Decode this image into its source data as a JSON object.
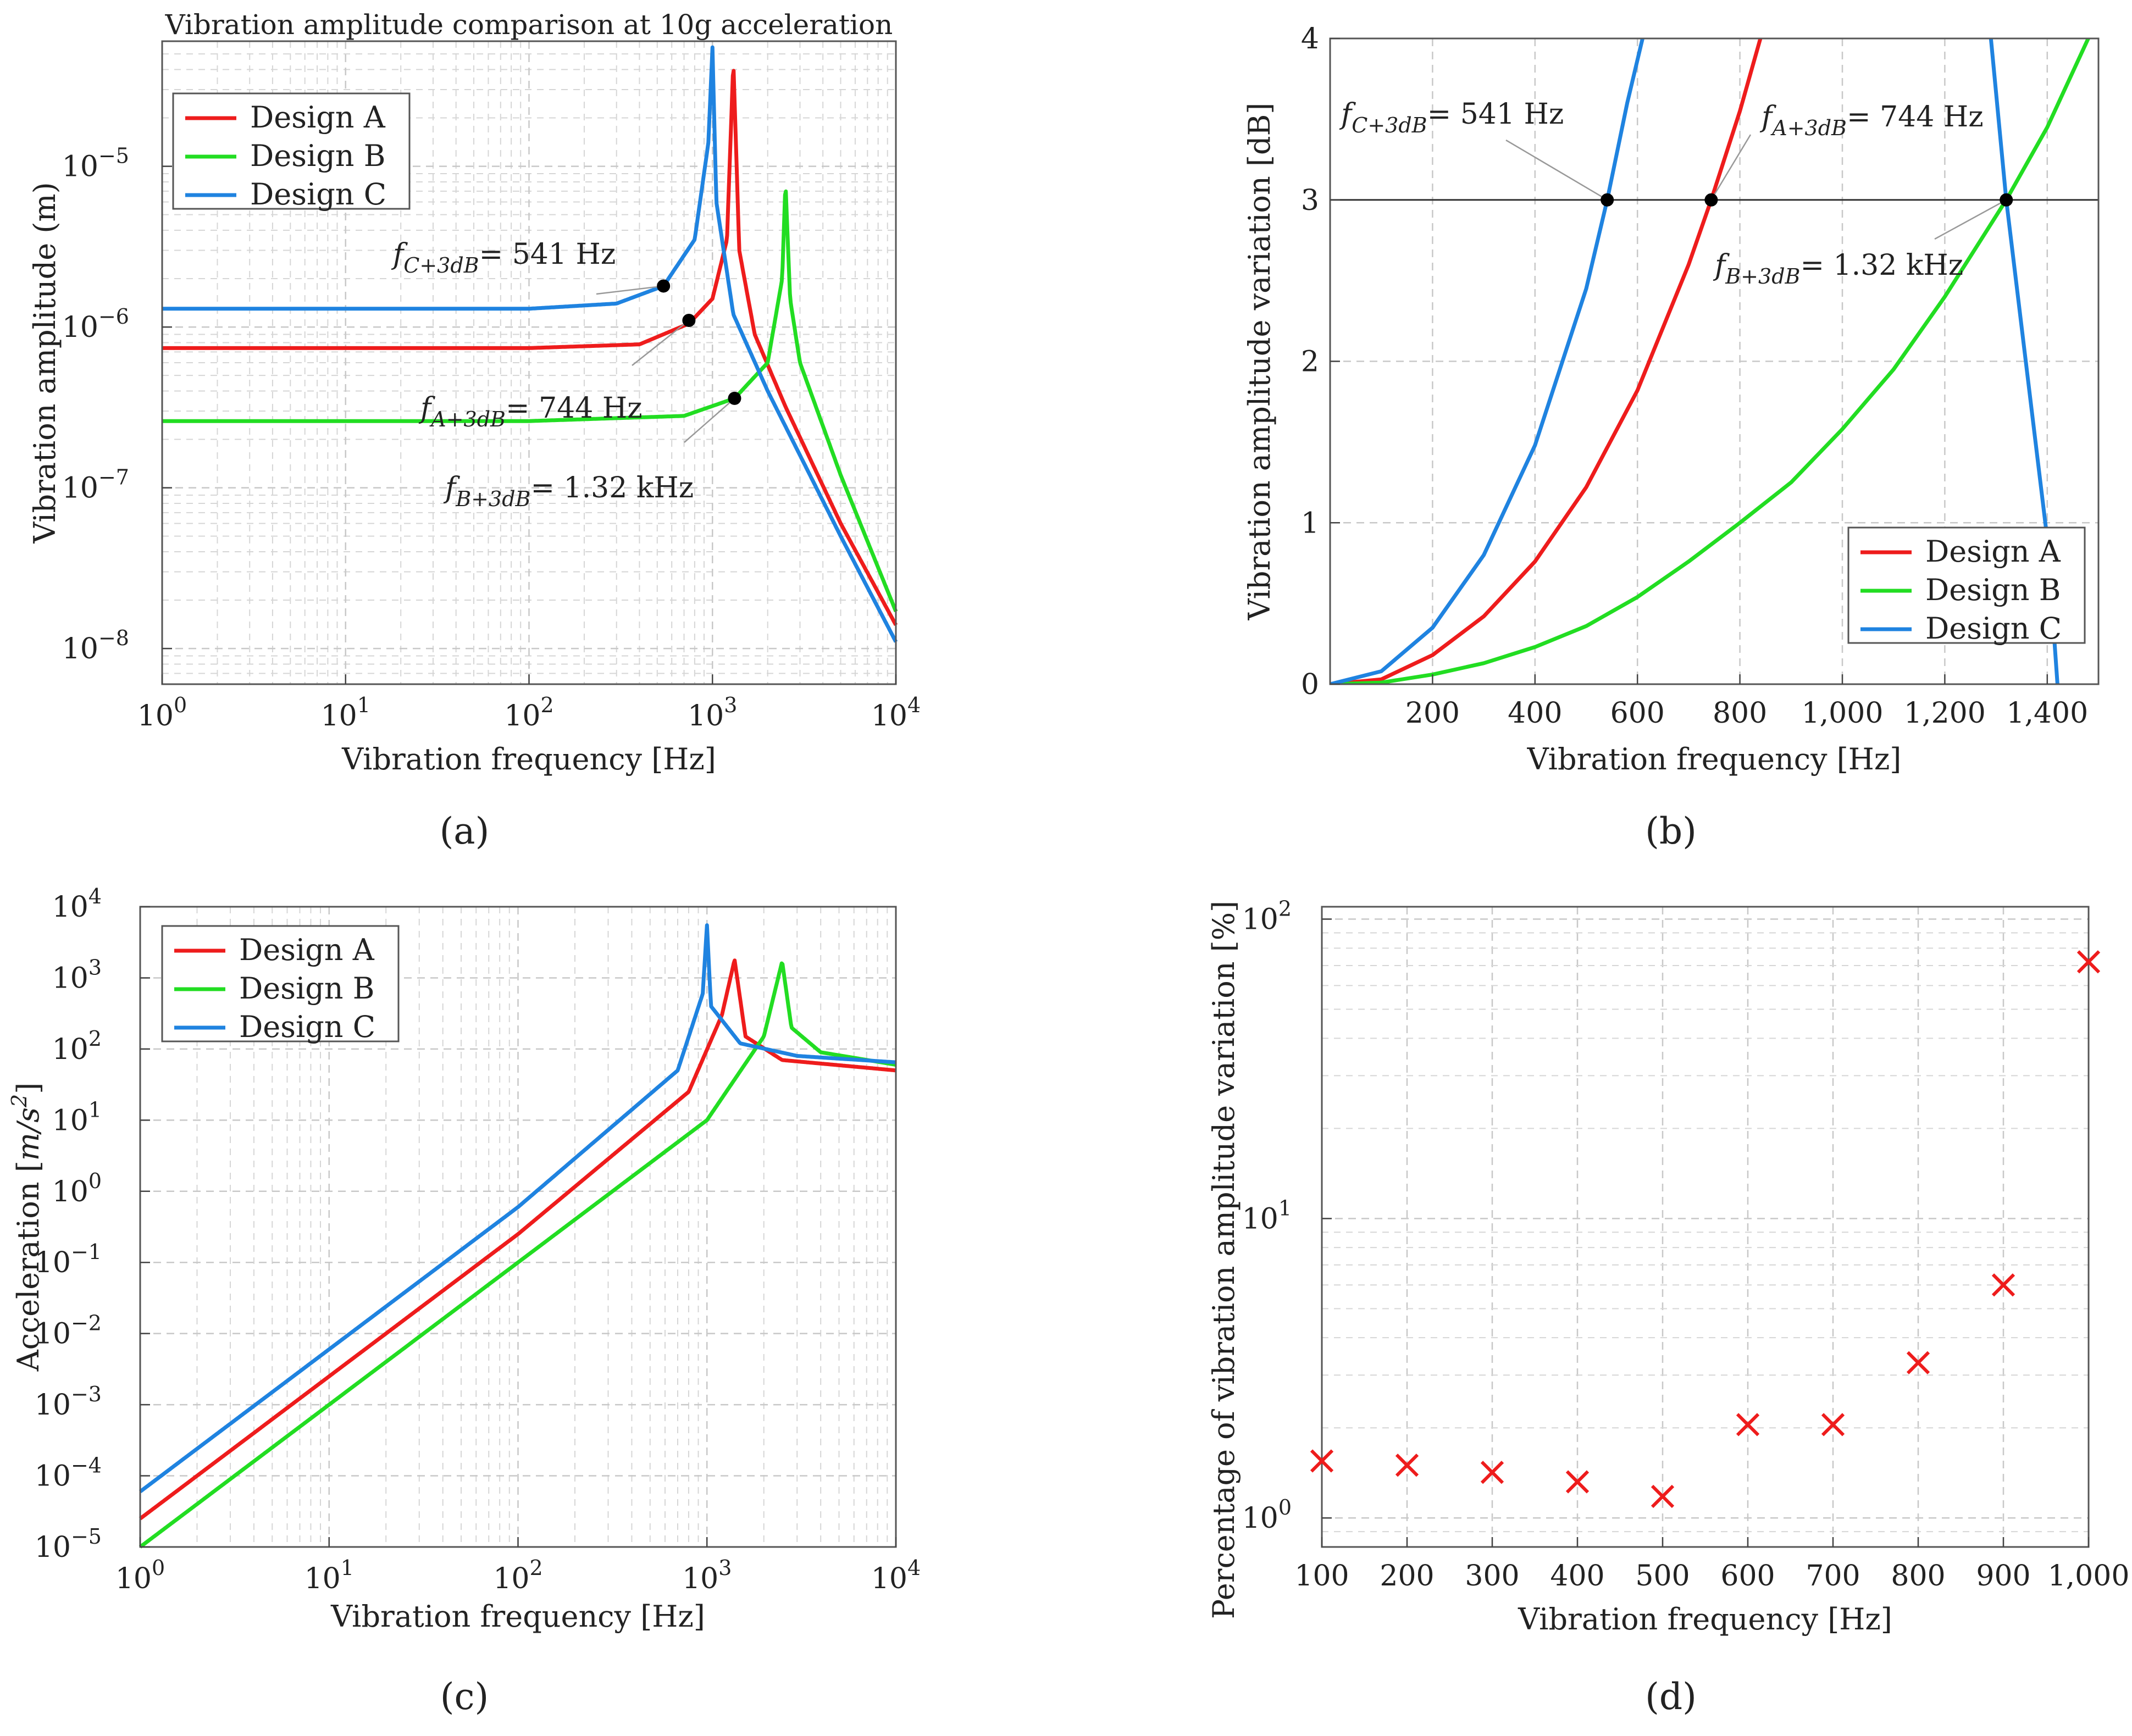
{
  "colors": {
    "designA": "#ee1c1c",
    "designB": "#22dd22",
    "designC": "#1f83e0",
    "marker": "#000000"
  },
  "panels": {
    "a": {
      "label": "(a)"
    },
    "b": {
      "label": "(b)"
    },
    "c": {
      "label": "(c)"
    },
    "d": {
      "label": "(d)"
    }
  },
  "chart_data": [
    {
      "id": "a",
      "type": "line",
      "title": "Vibration amplitude comparison at 10g acceleration",
      "xlabel": "Vibration frequency [Hz]",
      "ylabel": "Vibration amplitude (m)",
      "xscale": "log",
      "yscale": "log",
      "xlim": [
        1,
        10000
      ],
      "ylim": [
        6e-09,
        6e-05
      ],
      "legend": {
        "position": "top-left",
        "entries": [
          "Design A",
          "Design B",
          "Design C"
        ]
      },
      "series": [
        {
          "name": "Design A",
          "color_key": "designA",
          "low_freq": 7.4e-07,
          "resonance_hz": 1300,
          "peak": 4.5e-05,
          "points": [
            [
              1,
              7.4e-07
            ],
            [
              100,
              7.4e-07
            ],
            [
              400,
              7.8e-07
            ],
            [
              744,
              1.05e-06
            ],
            [
              1000,
              1.5e-06
            ],
            [
              1200,
              3.5e-06
            ],
            [
              1300,
              4.5e-05
            ],
            [
              1400,
              3e-06
            ],
            [
              1700,
              9e-07
            ],
            [
              2500,
              3.2e-07
            ],
            [
              5000,
              6e-08
            ],
            [
              10000,
              1.4e-08
            ]
          ]
        },
        {
          "name": "Design B",
          "color_key": "designB",
          "low_freq": 2.6e-07,
          "resonance_hz": 2500,
          "peak": 8e-06,
          "points": [
            [
              1,
              2.6e-07
            ],
            [
              100,
              2.6e-07
            ],
            [
              700,
              2.8e-07
            ],
            [
              1320,
              3.6e-07
            ],
            [
              2000,
              6e-07
            ],
            [
              2400,
              2e-06
            ],
            [
              2500,
              8e-06
            ],
            [
              2650,
              1.5e-06
            ],
            [
              3000,
              6e-07
            ],
            [
              5000,
              1.2e-07
            ],
            [
              10000,
              1.7e-08
            ]
          ]
        },
        {
          "name": "Design C",
          "color_key": "designC",
          "low_freq": 1.3e-06,
          "resonance_hz": 1000,
          "peak": 5.5e-05,
          "points": [
            [
              1,
              1.3e-06
            ],
            [
              100,
              1.3e-06
            ],
            [
              300,
              1.4e-06
            ],
            [
              541,
              1.8e-06
            ],
            [
              800,
              3.5e-06
            ],
            [
              950,
              1.4e-05
            ],
            [
              1000,
              5.5e-05
            ],
            [
              1050,
              6e-06
            ],
            [
              1300,
              1.2e-06
            ],
            [
              2000,
              4e-07
            ],
            [
              5000,
              5e-08
            ],
            [
              10000,
              1.1e-08
            ]
          ]
        }
      ],
      "markers": [
        {
          "series": "Design C",
          "x": 541,
          "y": 1.8e-06,
          "label_main": "f",
          "label_sub": "C+3dB",
          "label_rest": "= 541 Hz"
        },
        {
          "series": "Design A",
          "x": 744,
          "y": 1.1e-06,
          "label_main": "f",
          "label_sub": "A+3dB",
          "label_rest": "= 744 Hz"
        },
        {
          "series": "Design B",
          "x": 1320,
          "y": 3.6e-07,
          "label_main": "f",
          "label_sub": "B+3dB",
          "label_rest": "= 1.32 kHz"
        }
      ],
      "xticks": [
        "10",
        "10",
        "10",
        "10",
        "10"
      ],
      "xtick_exp": [
        "0",
        "1",
        "2",
        "3",
        "4"
      ],
      "yticks": [
        "10",
        "10",
        "10",
        "10"
      ],
      "ytick_exp": [
        "−8",
        "−7",
        "−6",
        "−5"
      ]
    },
    {
      "id": "b",
      "type": "line",
      "title": "",
      "xlabel": "Vibration frequency [Hz]",
      "ylabel": "Vibration amplitude variation [dB]",
      "xlim": [
        0,
        1500
      ],
      "ylim": [
        0,
        4
      ],
      "xticks": [
        "200",
        "400",
        "600",
        "800",
        "1,000",
        "1,200",
        "1,400"
      ],
      "xtick_values": [
        200,
        400,
        600,
        800,
        1000,
        1200,
        1400
      ],
      "yticks": [
        "0",
        "1",
        "2",
        "3",
        "4"
      ],
      "reference_line_db": 3,
      "legend": {
        "position": "bottom-right",
        "entries": [
          "Design A",
          "Design B",
          "Design C"
        ]
      },
      "series": [
        {
          "name": "Design A",
          "color_key": "designA",
          "points": [
            [
              0,
              0
            ],
            [
              100,
              0.03
            ],
            [
              200,
              0.18
            ],
            [
              300,
              0.42
            ],
            [
              400,
              0.76
            ],
            [
              500,
              1.22
            ],
            [
              600,
              1.82
            ],
            [
              700,
              2.6
            ],
            [
              744,
              3.0
            ],
            [
              800,
              3.55
            ],
            [
              840,
              4.0
            ]
          ]
        },
        {
          "name": "Design B",
          "color_key": "designB",
          "points": [
            [
              0,
              0
            ],
            [
              100,
              0.01
            ],
            [
              200,
              0.06
            ],
            [
              300,
              0.13
            ],
            [
              400,
              0.23
            ],
            [
              500,
              0.36
            ],
            [
              600,
              0.54
            ],
            [
              700,
              0.76
            ],
            [
              800,
              1.0
            ],
            [
              900,
              1.25
            ],
            [
              1000,
              1.58
            ],
            [
              1100,
              1.95
            ],
            [
              1200,
              2.4
            ],
            [
              1320,
              3.0
            ],
            [
              1400,
              3.45
            ],
            [
              1480,
              4.0
            ]
          ]
        },
        {
          "name": "Design C",
          "color_key": "designC",
          "points": [
            [
              0,
              0
            ],
            [
              100,
              0.08
            ],
            [
              200,
              0.35
            ],
            [
              300,
              0.8
            ],
            [
              400,
              1.48
            ],
            [
              500,
              2.45
            ],
            [
              541,
              3.0
            ],
            [
              580,
              3.6
            ],
            [
              610,
              4.0
            ]
          ],
          "points_falling": [
            [
              1290,
              4.0
            ],
            [
              1320,
              3.0
            ],
            [
              1400,
              0.9
            ],
            [
              1420,
              0.0
            ]
          ]
        }
      ],
      "markers": [
        {
          "series": "Design C",
          "x": 541,
          "y": 3,
          "label_main": "f",
          "label_sub": "C+3dB",
          "label_rest": "= 541 Hz"
        },
        {
          "series": "Design A",
          "x": 744,
          "y": 3,
          "label_main": "f",
          "label_sub": "A+3dB",
          "label_rest": "= 744 Hz"
        },
        {
          "series": "Design B",
          "x": 1320,
          "y": 3,
          "label_main": "f",
          "label_sub": "B+3dB",
          "label_rest": "= 1.32 kHz"
        }
      ]
    },
    {
      "id": "c",
      "type": "line",
      "title": "",
      "xlabel": "Vibration frequency [Hz]",
      "ylabel_main": "Acceleration [",
      "ylabel_unit": "m/s",
      "ylabel_sup": "2",
      "ylabel_end": "]",
      "xscale": "log",
      "yscale": "log",
      "xlim": [
        1,
        10000
      ],
      "ylim": [
        1e-05,
        10000.0
      ],
      "legend": {
        "position": "top-left",
        "entries": [
          "Design A",
          "Design B",
          "Design C"
        ]
      },
      "series": [
        {
          "name": "Design A",
          "color_key": "designA",
          "points": [
            [
              1,
              2.5e-05
            ],
            [
              100,
              0.25
            ],
            [
              800,
              25
            ],
            [
              1200,
              300
            ],
            [
              1400,
              1800
            ],
            [
              1600,
              150
            ],
            [
              2500,
              70
            ],
            [
              10000,
              50
            ]
          ]
        },
        {
          "name": "Design B",
          "color_key": "designB",
          "points": [
            [
              1,
              1e-05
            ],
            [
              100,
              0.1
            ],
            [
              1000,
              10
            ],
            [
              2000,
              150
            ],
            [
              2500,
              1700
            ],
            [
              2800,
              200
            ],
            [
              4000,
              90
            ],
            [
              10000,
              60
            ]
          ]
        },
        {
          "name": "Design C",
          "color_key": "designC",
          "points": [
            [
              1,
              6e-05
            ],
            [
              100,
              0.6
            ],
            [
              700,
              50
            ],
            [
              950,
              600
            ],
            [
              1000,
              5500
            ],
            [
              1050,
              400
            ],
            [
              1500,
              120
            ],
            [
              3000,
              80
            ],
            [
              10000,
              65
            ]
          ]
        }
      ],
      "xticks": [
        "10",
        "10",
        "10",
        "10",
        "10"
      ],
      "xtick_exp": [
        "0",
        "1",
        "2",
        "3",
        "4"
      ],
      "yticks": [
        "10",
        "10",
        "10",
        "10",
        "10",
        "10",
        "10",
        "10",
        "10",
        "10"
      ],
      "ytick_exp": [
        "−5",
        "−4",
        "−3",
        "−2",
        "−1",
        "0",
        "1",
        "2",
        "3",
        "4"
      ]
    },
    {
      "id": "d",
      "type": "scatter",
      "title": "",
      "xlabel": "Vibration frequency [Hz]",
      "ylabel": "Percentage of vibration amplitude variation [%]",
      "yscale": "log",
      "xlim": [
        100,
        1000
      ],
      "ylim": [
        0.8,
        110
      ],
      "xticks": [
        "100",
        "200",
        "300",
        "400",
        "500",
        "600",
        "700",
        "800",
        "900",
        "1,000"
      ],
      "xtick_values": [
        100,
        200,
        300,
        400,
        500,
        600,
        700,
        800,
        900,
        1000
      ],
      "yticks": [
        "10",
        "10",
        "10"
      ],
      "ytick_exp": [
        "0",
        "1",
        "2"
      ],
      "marker": "x",
      "color_key": "designA",
      "x": [
        100,
        200,
        300,
        400,
        500,
        600,
        700,
        800,
        900,
        1000
      ],
      "y": [
        1.55,
        1.5,
        1.42,
        1.32,
        1.18,
        2.05,
        2.05,
        3.3,
        6.0,
        72
      ]
    }
  ]
}
